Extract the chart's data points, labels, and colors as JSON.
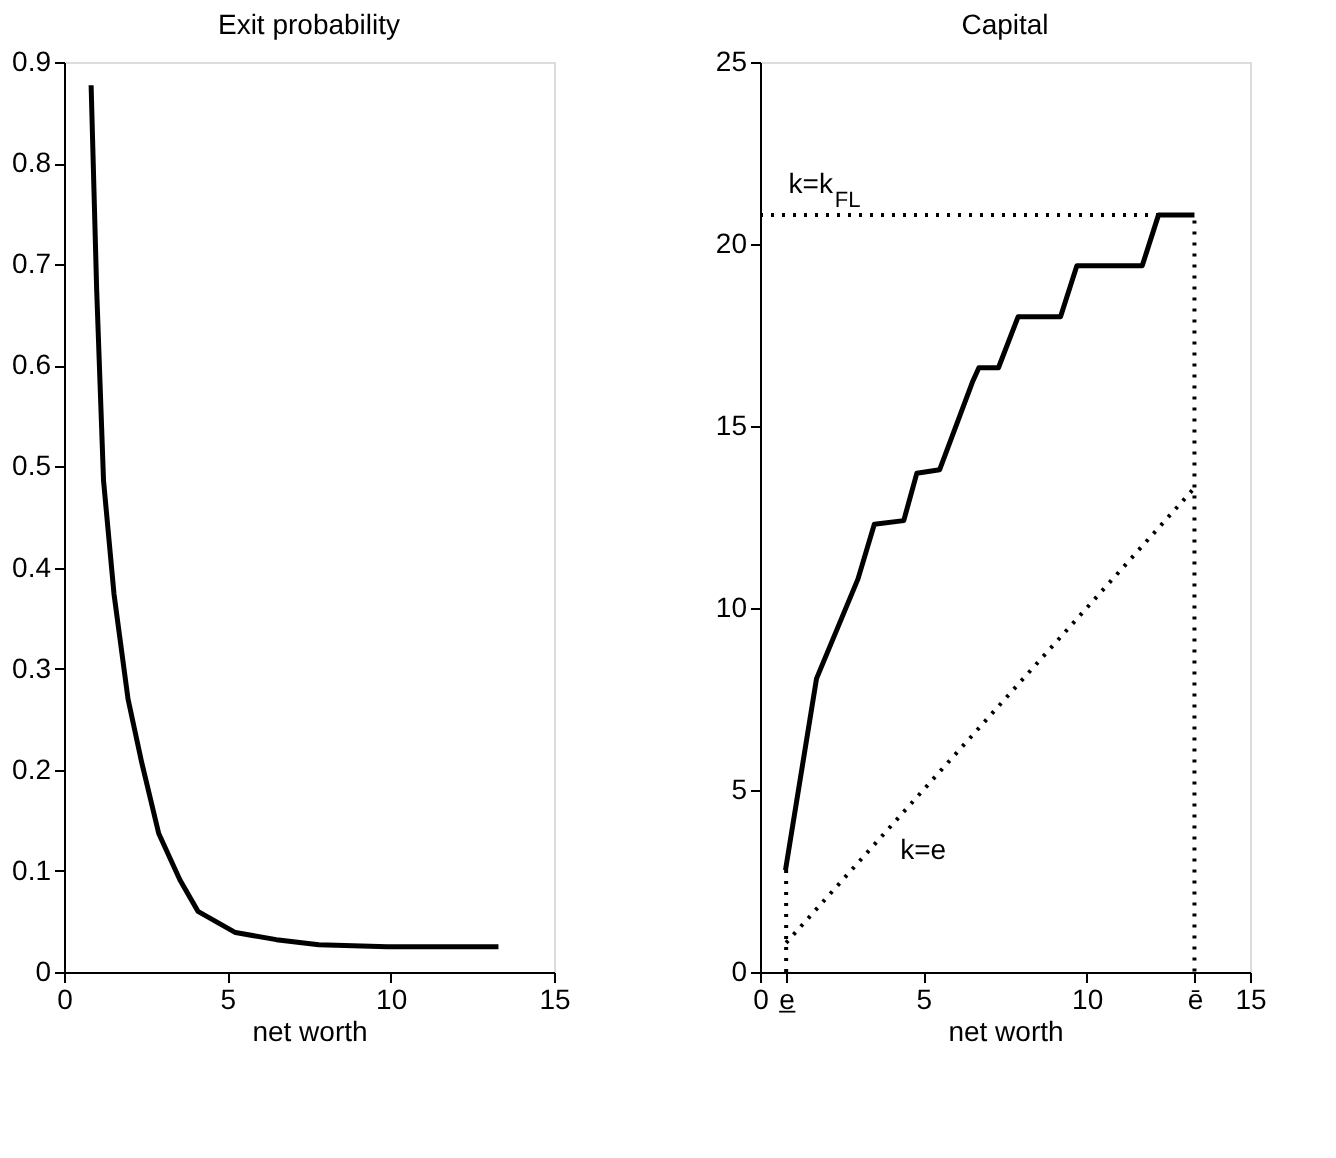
{
  "chart_data": [
    {
      "type": "line",
      "title": "Exit probability",
      "xlabel": "net worth",
      "xlim": [
        0,
        15
      ],
      "xticks": [
        0,
        5,
        10,
        15
      ],
      "ylim": [
        0,
        0.9
      ],
      "yticks": [
        0,
        0.1,
        0.2,
        0.3,
        0.4,
        0.5,
        0.6,
        0.7,
        0.8,
        0.9
      ],
      "grid": false,
      "legend": false,
      "series": [
        {
          "color": "#000000",
          "line_style": "solid",
          "x": [
            0.83,
            1.0,
            1.21,
            1.53,
            1.96,
            2.38,
            2.9,
            3.55,
            4.1,
            5.25,
            6.5,
            7.8,
            9.9,
            13.3
          ],
          "values": [
            0.877,
            0.675,
            0.486,
            0.374,
            0.27,
            0.207,
            0.137,
            0.091,
            0.06,
            0.039,
            0.032,
            0.027,
            0.025,
            0.025
          ]
        }
      ]
    },
    {
      "type": "line",
      "title": "Capital",
      "xlabel": "net worth",
      "xlim": [
        0,
        15
      ],
      "xticks": [
        0,
        {
          "value": 0.8,
          "label": "e̲"
        },
        5,
        10,
        {
          "value": 13.3,
          "label": "ē"
        },
        15
      ],
      "ylim": [
        0,
        25
      ],
      "yticks": [
        0,
        5,
        10,
        15,
        20,
        25
      ],
      "grid": false,
      "legend": false,
      "series": [
        {
          "color": "#000000",
          "line_style": "solid",
          "x": [
            0.78,
            1.73,
            3.0,
            3.5,
            4.4,
            4.8,
            5.5,
            6.5,
            6.7,
            7.3,
            7.9,
            9.2,
            9.7,
            11.7,
            12.2,
            13.3
          ],
          "values": [
            2.8,
            8.06,
            10.8,
            12.3,
            12.4,
            13.7,
            13.8,
            16.2,
            16.6,
            16.6,
            18.0,
            18.0,
            19.4,
            19.4,
            20.8,
            20.8
          ]
        },
        {
          "name": "k=e",
          "color": "#000000",
          "line_style": "dotted",
          "x": [
            0.8,
            13.3
          ],
          "values": [
            0.8,
            13.3
          ]
        },
        {
          "name": "k=k$_{FL}$",
          "color": "#000000",
          "line_style": "dotted",
          "x": [
            0,
            13.3,
            13.3
          ],
          "values": [
            20.8,
            20.8,
            0
          ]
        },
        {
          "color": "#000000",
          "line_style": "dotted",
          "x": [
            0.8,
            0.8
          ],
          "values": [
            0,
            2.8
          ]
        }
      ]
    }
  ]
}
